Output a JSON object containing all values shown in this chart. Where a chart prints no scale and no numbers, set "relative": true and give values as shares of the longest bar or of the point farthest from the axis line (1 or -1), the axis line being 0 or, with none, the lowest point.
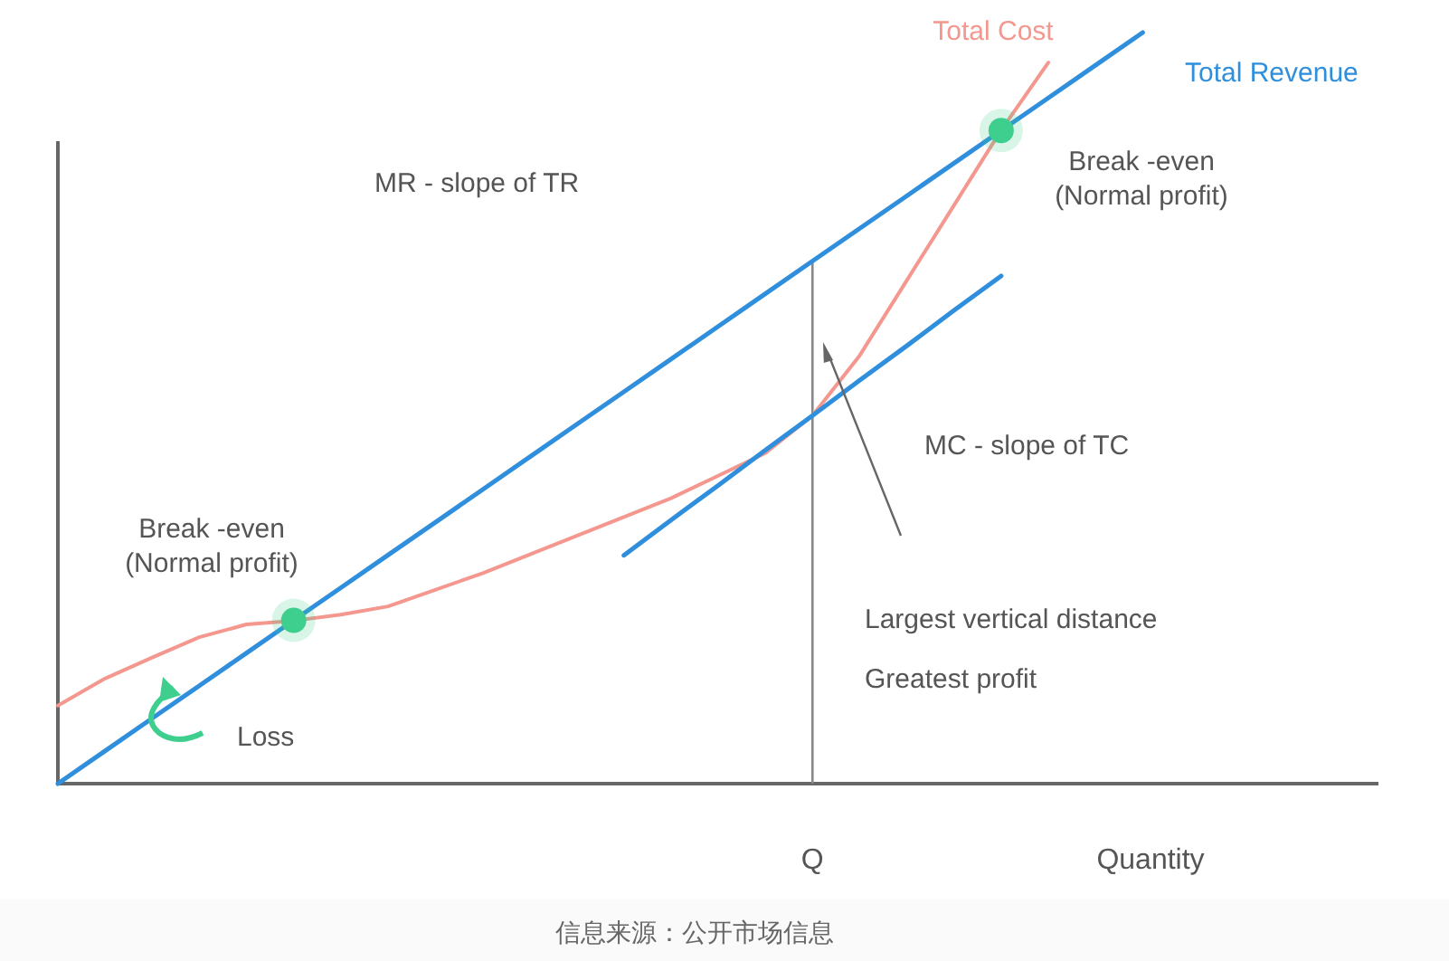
{
  "chart_data": {
    "type": "line",
    "relative": true,
    "xlabel": "Quantity",
    "legend": false,
    "categories": [
      null,
      null,
      null,
      null,
      null,
      null,
      null,
      null,
      null,
      null,
      null,
      null,
      null,
      null,
      null,
      null,
      null,
      null,
      null,
      null,
      null,
      null,
      null,
      null,
      null,
      null,
      null,
      null,
      null
    ],
    "series": [
      {
        "name": "Total Revenue",
        "color": "#2f8fdd",
        "values": [
          0,
          0.0435,
          0.087,
          0.1304,
          0.1739,
          0.2174,
          0.2609,
          0.3043,
          0.3478,
          0.3913,
          0.4348,
          0.4783,
          0.5217,
          0.5652,
          0.6087,
          0.6522,
          0.6957,
          0.7391,
          0.7826,
          0.8261,
          0.8696,
          0.913,
          0.9565,
          1,
          null,
          null,
          null,
          null,
          null
        ]
      },
      {
        "name": "Total Cost",
        "color": "#f4978e",
        "values": [
          0.104,
          0.14,
          0.168,
          0.195,
          0.212,
          0.217,
          0.225,
          0.236,
          0.258,
          0.28,
          0.305,
          0.33,
          0.355,
          0.38,
          0.41,
          0.44,
          0.49,
          0.57,
          0.67,
          0.77,
          0.87,
          0.96,
          null,
          null,
          null,
          null,
          null,
          null,
          null
        ]
      },
      {
        "color": "#2f8fdd",
        "values": [
          null,
          null,
          null,
          null,
          null,
          null,
          null,
          null,
          null,
          null,
          null,
          null,
          0.304,
          0.351,
          0.397,
          0.444,
          0.49,
          0.537,
          0.583,
          0.63,
          0.676,
          null,
          null,
          null,
          null,
          null,
          null,
          null,
          null
        ]
      }
    ],
    "ref_lines": [
      {
        "axis": "x",
        "value": "Q",
        "color": "#888888"
      }
    ],
    "annotations": [
      "Break -even\n(Normal profit)",
      "Break -even\n(Normal profit)",
      "MR - slope of TR",
      "MC - slope of TC",
      "Largest vertical distance",
      "Greatest profit",
      "Loss",
      "信息来源：公开市场信息"
    ]
  }
}
